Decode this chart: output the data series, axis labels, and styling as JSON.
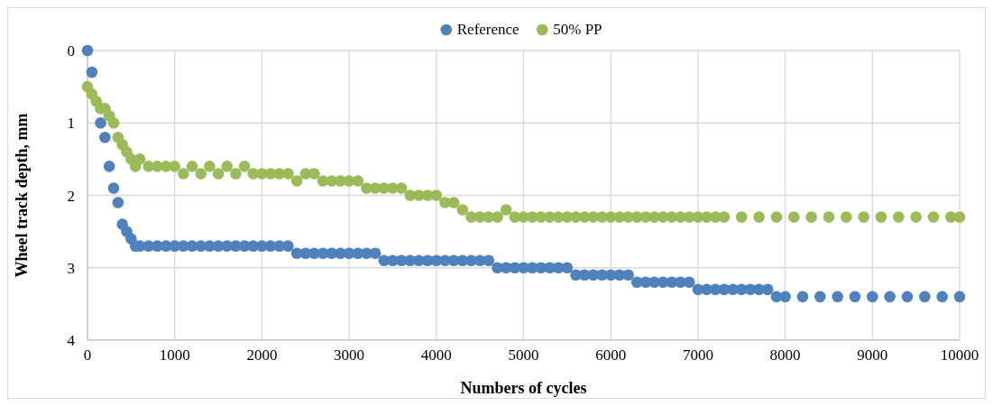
{
  "chart_data": {
    "type": "scatter",
    "xlabel": "Numbers of cycles",
    "ylabel": "Wheel track depth, mm",
    "xlim": [
      0,
      10000
    ],
    "xticks": [
      0,
      1000,
      2000,
      3000,
      4000,
      5000,
      6000,
      7000,
      8000,
      9000,
      10000
    ],
    "ylim": [
      4,
      0
    ],
    "yticks": [
      0,
      1,
      2,
      3,
      4
    ],
    "grid": true,
    "legend": "top",
    "marker": "circle",
    "series": [
      {
        "name": "Reference",
        "color": "#4f81bd",
        "x": [
          0,
          50,
          150,
          200,
          250,
          300,
          350,
          400,
          450,
          500,
          550,
          600,
          700,
          800,
          900,
          1000,
          1100,
          1200,
          1300,
          1400,
          1500,
          1600,
          1700,
          1800,
          1900,
          2000,
          2100,
          2200,
          2300,
          2400,
          2500,
          2600,
          2700,
          2800,
          2900,
          3000,
          3100,
          3200,
          3300,
          3400,
          3500,
          3600,
          3700,
          3800,
          3900,
          4000,
          4100,
          4200,
          4300,
          4400,
          4500,
          4600,
          4700,
          4800,
          4900,
          5000,
          5100,
          5200,
          5300,
          5400,
          5500,
          5600,
          5700,
          5800,
          5900,
          6000,
          6100,
          6200,
          6300,
          6400,
          6500,
          6600,
          6700,
          6800,
          6900,
          7000,
          7100,
          7200,
          7300,
          7400,
          7500,
          7600,
          7700,
          7800,
          7900,
          8000,
          8200,
          8400,
          8600,
          8800,
          9000,
          9200,
          9400,
          9600,
          9800,
          10000
        ],
        "values": [
          0,
          0.3,
          1.0,
          1.2,
          1.6,
          1.9,
          2.1,
          2.4,
          2.5,
          2.6,
          2.7,
          2.7,
          2.7,
          2.7,
          2.7,
          2.7,
          2.7,
          2.7,
          2.7,
          2.7,
          2.7,
          2.7,
          2.7,
          2.7,
          2.7,
          2.7,
          2.7,
          2.7,
          2.7,
          2.8,
          2.8,
          2.8,
          2.8,
          2.8,
          2.8,
          2.8,
          2.8,
          2.8,
          2.8,
          2.9,
          2.9,
          2.9,
          2.9,
          2.9,
          2.9,
          2.9,
          2.9,
          2.9,
          2.9,
          2.9,
          2.9,
          2.9,
          3.0,
          3.0,
          3.0,
          3.0,
          3.0,
          3.0,
          3.0,
          3.0,
          3.0,
          3.1,
          3.1,
          3.1,
          3.1,
          3.1,
          3.1,
          3.1,
          3.2,
          3.2,
          3.2,
          3.2,
          3.2,
          3.2,
          3.2,
          3.3,
          3.3,
          3.3,
          3.3,
          3.3,
          3.3,
          3.3,
          3.3,
          3.3,
          3.4,
          3.4,
          3.4,
          3.4,
          3.4,
          3.4,
          3.4,
          3.4,
          3.4,
          3.4,
          3.4,
          3.4
        ]
      },
      {
        "name": "50% PP",
        "color": "#9bbb59",
        "x": [
          0,
          50,
          100,
          150,
          200,
          250,
          300,
          350,
          400,
          450,
          500,
          550,
          600,
          700,
          800,
          900,
          1000,
          1100,
          1200,
          1300,
          1400,
          1500,
          1600,
          1700,
          1800,
          1900,
          2000,
          2100,
          2200,
          2300,
          2400,
          2500,
          2600,
          2700,
          2800,
          2900,
          3000,
          3100,
          3200,
          3300,
          3400,
          3500,
          3600,
          3700,
          3800,
          3900,
          4000,
          4100,
          4200,
          4300,
          4400,
          4500,
          4600,
          4700,
          4800,
          4900,
          5000,
          5100,
          5200,
          5300,
          5400,
          5500,
          5600,
          5700,
          5800,
          5900,
          6000,
          6100,
          6200,
          6300,
          6400,
          6500,
          6600,
          6700,
          6800,
          6900,
          7000,
          7100,
          7200,
          7300,
          7500,
          7700,
          7900,
          8100,
          8300,
          8500,
          8700,
          8900,
          9100,
          9300,
          9500,
          9700,
          9900,
          10000
        ],
        "values": [
          0.5,
          0.6,
          0.7,
          0.8,
          0.8,
          0.9,
          1.0,
          1.2,
          1.3,
          1.4,
          1.5,
          1.6,
          1.5,
          1.6,
          1.6,
          1.6,
          1.6,
          1.7,
          1.6,
          1.7,
          1.6,
          1.7,
          1.6,
          1.7,
          1.6,
          1.7,
          1.7,
          1.7,
          1.7,
          1.7,
          1.8,
          1.7,
          1.7,
          1.8,
          1.8,
          1.8,
          1.8,
          1.8,
          1.9,
          1.9,
          1.9,
          1.9,
          1.9,
          2.0,
          2.0,
          2.0,
          2.0,
          2.1,
          2.1,
          2.2,
          2.3,
          2.3,
          2.3,
          2.3,
          2.2,
          2.3,
          2.3,
          2.3,
          2.3,
          2.3,
          2.3,
          2.3,
          2.3,
          2.3,
          2.3,
          2.3,
          2.3,
          2.3,
          2.3,
          2.3,
          2.3,
          2.3,
          2.3,
          2.3,
          2.3,
          2.3,
          2.3,
          2.3,
          2.3,
          2.3,
          2.3,
          2.3,
          2.3,
          2.3,
          2.3,
          2.3,
          2.3,
          2.3,
          2.3,
          2.3,
          2.3,
          2.3,
          2.3,
          2.3
        ]
      }
    ]
  }
}
